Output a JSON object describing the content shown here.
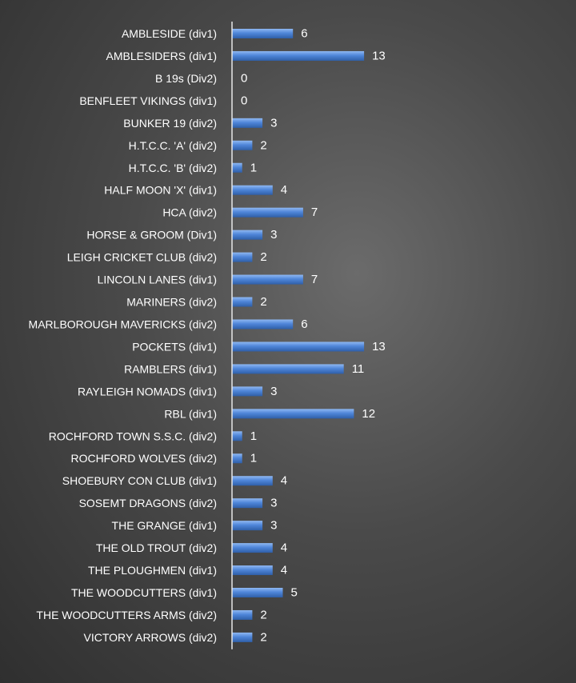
{
  "chart_data": {
    "type": "bar",
    "orientation": "horizontal",
    "title": "",
    "xlabel": "",
    "ylabel": "",
    "xlim": [
      0,
      13
    ],
    "grid": false,
    "legend": "none",
    "data_labels": true,
    "bar_color": "#4f86d9",
    "background": "#4a4a4a",
    "text_color": "#ffffff",
    "categories": [
      "AMBLESIDE (div1)",
      "AMBLESIDERS (div1)",
      "B 19s (Div2)",
      "BENFLEET VIKINGS (div1)",
      "BUNKER 19 (div2)",
      "H.T.C.C. 'A' (div2)",
      "H.T.C.C. 'B' (div2)",
      "HALF MOON 'X' (div1)",
      "HCA (div2)",
      "HORSE & GROOM (Div1)",
      "LEIGH CRICKET CLUB (div2)",
      "LINCOLN LANES (div1)",
      "MARINERS (div2)",
      "MARLBOROUGH MAVERICKS (div2)",
      "POCKETS (div1)",
      "RAMBLERS (div1)",
      "RAYLEIGH NOMADS (div1)",
      "RBL (div1)",
      "ROCHFORD TOWN S.S.C. (div2)",
      "ROCHFORD WOLVES (div2)",
      "SHOEBURY CON CLUB (div1)",
      "SOSEMT DRAGONS (div2)",
      "THE GRANGE (div1)",
      "THE OLD TROUT (div2)",
      "THE PLOUGHMEN (div1)",
      "THE WOODCUTTERS (div1)",
      "THE WOODCUTTERS ARMS (div2)",
      "VICTORY ARROWS (div2)"
    ],
    "values": [
      6,
      13,
      0,
      0,
      3,
      2,
      1,
      4,
      7,
      3,
      2,
      7,
      2,
      6,
      13,
      11,
      3,
      12,
      1,
      1,
      4,
      3,
      3,
      4,
      4,
      5,
      2,
      2
    ]
  }
}
